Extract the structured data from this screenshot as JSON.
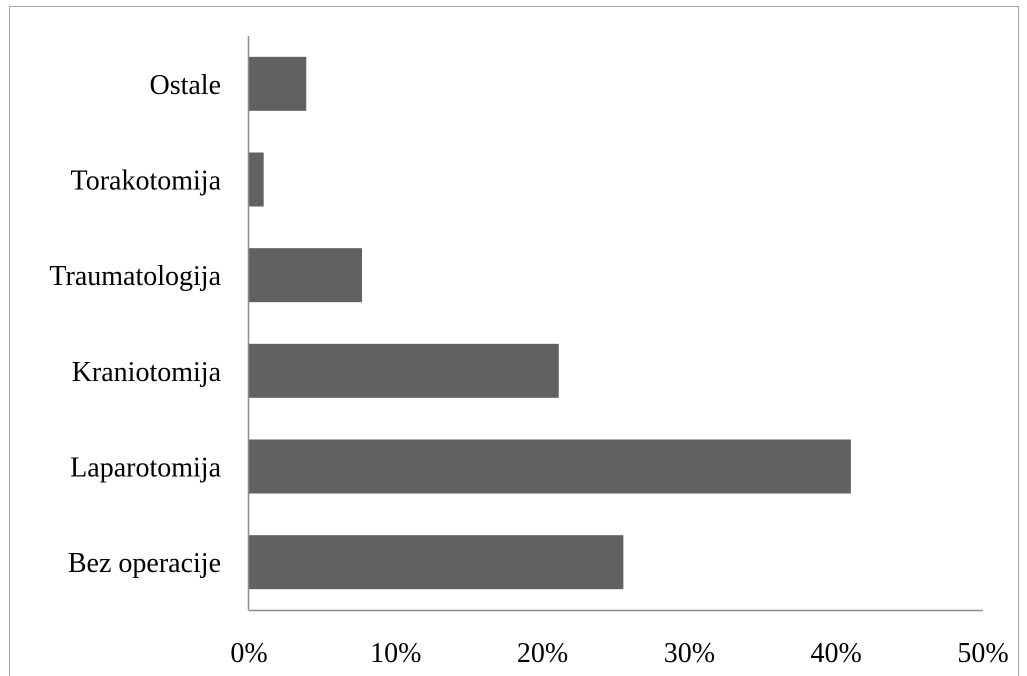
{
  "chart_data": {
    "type": "bar",
    "orientation": "horizontal",
    "categories": [
      "Bez operacije",
      "Laparotomija",
      "Kraniotomija",
      "Traumatologija",
      "Torakotomija",
      "Ostale"
    ],
    "values": [
      25.5,
      41.0,
      21.1,
      7.7,
      1.0,
      3.9
    ],
    "xlim": [
      0,
      50
    ],
    "xticks": [
      0,
      10,
      20,
      30,
      40,
      50
    ],
    "tick_labels": [
      "0%",
      "10%",
      "20%",
      "30%",
      "40%",
      "50%"
    ],
    "title": "",
    "xlabel": "",
    "ylabel": "",
    "grid": false,
    "legend": "none",
    "bar_color": "#616161",
    "axis_color": "#8c8c8c"
  }
}
